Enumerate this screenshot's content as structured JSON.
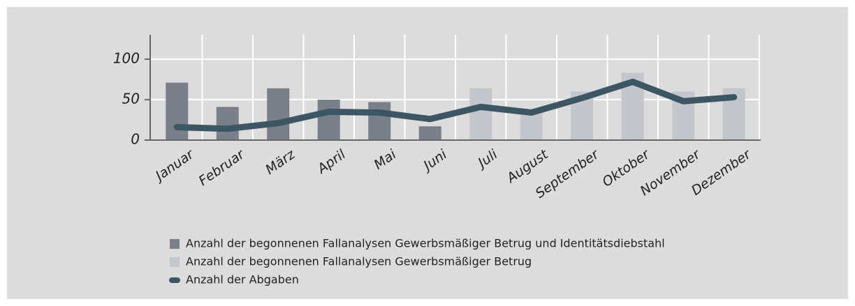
{
  "chart_data": {
    "type": "bar_line",
    "categories": [
      "Januar",
      "Februar",
      "März",
      "April",
      "Mai",
      "Juni",
      "Juli",
      "August",
      "September",
      "Oktober",
      "November",
      "Dezember"
    ],
    "series": [
      {
        "name": "Anzahl der begonnenen Fallanalysen Gewerbsmäßiger Betrug und Identitätsdiebstahl",
        "color": "#7a808a",
        "type": "bar",
        "values": [
          71,
          41,
          64,
          50,
          47,
          17,
          null,
          null,
          null,
          null,
          null,
          null
        ]
      },
      {
        "name": "Anzahl der begonnenen Fallanalysen Gewerbsmäßiger Betrug",
        "color": "#c4c6cc",
        "type": "bar",
        "values": [
          null,
          null,
          null,
          null,
          null,
          null,
          64,
          37,
          60,
          83,
          60,
          64
        ]
      },
      {
        "name": "Anzahl der Abgaben",
        "color": "#3d5663",
        "type": "line",
        "values": [
          16,
          14,
          21,
          35,
          34,
          26,
          41,
          34,
          52,
          72,
          48,
          53
        ]
      }
    ],
    "ylim": [
      0,
      130
    ],
    "yticks": [
      0,
      50,
      100
    ],
    "grid": true
  }
}
